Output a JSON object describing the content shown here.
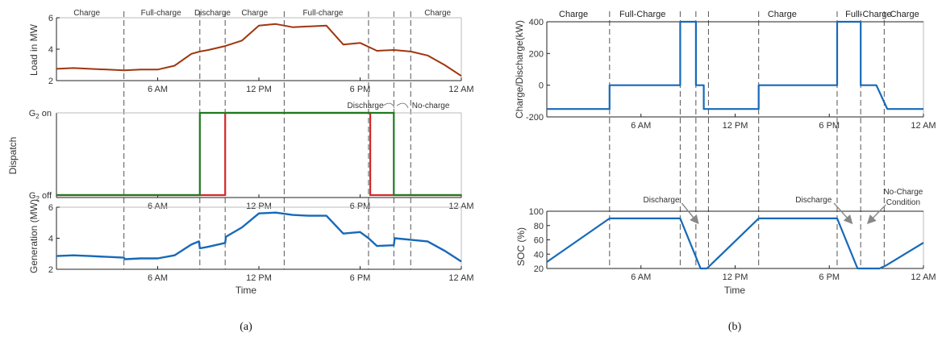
{
  "panel_a": {
    "caption": "(a)",
    "phases": [
      "Charge",
      "Full-charge",
      "Discharge",
      "Charge",
      "Full-charge",
      "Charge"
    ],
    "phase_bounds_hours": [
      0,
      4,
      8.5,
      10,
      13.5,
      18.5,
      20,
      21,
      24
    ],
    "phase_label_hours": [
      1.8,
      6.2,
      9.25,
      11.75,
      15.8,
      22.6
    ],
    "x_ticks": [
      "6 AM",
      "12 PM",
      "6 PM",
      "12 AM"
    ],
    "x_tick_hours": [
      6,
      12,
      18,
      24
    ],
    "xlabel": "Time",
    "annotations": [
      {
        "text": "Discharge",
        "x_hour": 18.6
      },
      {
        "text": "No-charge",
        "x_hour": 21.9
      }
    ]
  },
  "panel_b": {
    "caption": "(b)",
    "phases": [
      "Charge",
      "Full-Charge",
      "Charge",
      "Full-Charge",
      "Charge"
    ],
    "phase_bounds_hours": [
      0,
      4,
      8.5,
      13.5,
      18.5,
      24
    ],
    "phase_label_hours": [
      1.7,
      6.1,
      15.0,
      20.5,
      22.8
    ],
    "extra_dashed_hours": [
      9.5,
      10.3,
      20.0,
      21.5
    ],
    "x_ticks": [
      "6 AM",
      "12 PM",
      "6 PM",
      "12 AM"
    ],
    "x_tick_hours": [
      6,
      12,
      18,
      24
    ],
    "xlabel": "Time",
    "annotations": [
      {
        "text": "Discharge",
        "x_hour": 7.3
      },
      {
        "text": "Discharge",
        "x_hour": 17.0
      },
      {
        "text": "No-Charge",
        "x_hour": 22.3
      },
      {
        "text": "Condition",
        "x_hour": 22.3
      }
    ]
  },
  "chart_data": [
    {
      "id": "load",
      "type": "line",
      "ylabel": "Load in MW",
      "ylim": [
        2,
        6
      ],
      "y_ticks": [
        2,
        4,
        6
      ],
      "xlim": [
        0,
        24
      ],
      "color": "#A0350E",
      "x": [
        0,
        1,
        2,
        3,
        4,
        5,
        6,
        7,
        8,
        8.5,
        9,
        10,
        11,
        12,
        13,
        14,
        15,
        16,
        17,
        18,
        19,
        20,
        21,
        22,
        23,
        24
      ],
      "values": [
        2.75,
        2.8,
        2.75,
        2.7,
        2.65,
        2.7,
        2.7,
        2.95,
        3.7,
        3.85,
        3.95,
        4.2,
        4.55,
        5.5,
        5.6,
        5.4,
        5.45,
        5.5,
        4.3,
        4.4,
        3.9,
        3.95,
        3.85,
        3.6,
        3.0,
        2.3
      ]
    },
    {
      "id": "dispatch",
      "type": "line",
      "ylabel": "Dispatch",
      "y_tick_labels": [
        "G2 on",
        "G2 off"
      ],
      "ylim": [
        0,
        1
      ],
      "xlim": [
        0,
        24
      ],
      "series": [
        {
          "color": "#D62728",
          "x": [
            0,
            10,
            10,
            18.6,
            18.6,
            20,
            20,
            24
          ],
          "values": [
            0,
            0,
            1,
            1,
            0,
            0,
            0,
            0
          ]
        },
        {
          "color": "#1E7B1E",
          "x": [
            0,
            8.5,
            8.5,
            20,
            20,
            24
          ],
          "values": [
            0,
            0,
            1,
            1,
            0,
            0
          ]
        }
      ]
    },
    {
      "id": "generation",
      "type": "line",
      "ylabel": "Generation (MW)",
      "ylim": [
        2,
        6
      ],
      "y_ticks": [
        2,
        4,
        6
      ],
      "xlim": [
        0,
        24
      ],
      "color": "#1769B8",
      "x": [
        0,
        1,
        2,
        3,
        4,
        4.05,
        5,
        6,
        7,
        8,
        8.45,
        8.5,
        9,
        10,
        10.05,
        11,
        12,
        13,
        14,
        15,
        16,
        17,
        18,
        18.5,
        19,
        20,
        20.05,
        21,
        22,
        23,
        24
      ],
      "values": [
        2.85,
        2.9,
        2.85,
        2.8,
        2.75,
        2.65,
        2.7,
        2.7,
        2.9,
        3.6,
        3.8,
        3.35,
        3.45,
        3.7,
        4.1,
        4.7,
        5.6,
        5.65,
        5.5,
        5.45,
        5.45,
        4.3,
        4.4,
        4.0,
        3.5,
        3.55,
        4.0,
        3.9,
        3.8,
        3.2,
        2.5
      ]
    },
    {
      "id": "charge_discharge",
      "type": "line",
      "ylabel": "Charge/Discharge(kW)",
      "ylim": [
        -200,
        400
      ],
      "y_ticks": [
        -200,
        0,
        200,
        400
      ],
      "xlim": [
        0,
        24
      ],
      "color": "#1769B8",
      "x": [
        0,
        4,
        4,
        8.5,
        8.5,
        9.5,
        9.5,
        10,
        10,
        13.5,
        13.5,
        18.5,
        18.5,
        20,
        20,
        21,
        21.7,
        24
      ],
      "values": [
        -150,
        -150,
        0,
        0,
        400,
        400,
        0,
        0,
        -150,
        -150,
        0,
        0,
        400,
        400,
        0,
        0,
        -150,
        -150
      ]
    },
    {
      "id": "soc",
      "type": "line",
      "ylabel": "SOC (%)",
      "ylim": [
        20,
        100
      ],
      "y_ticks": [
        20,
        40,
        60,
        80,
        100
      ],
      "xlim": [
        0,
        24
      ],
      "color": "#1769B8",
      "x": [
        0,
        4,
        8.5,
        9.8,
        10.2,
        13.5,
        18.5,
        19.8,
        21.2,
        21.6,
        24
      ],
      "values": [
        29,
        90,
        90,
        20,
        20,
        90,
        90,
        20,
        20,
        24,
        56
      ]
    }
  ]
}
